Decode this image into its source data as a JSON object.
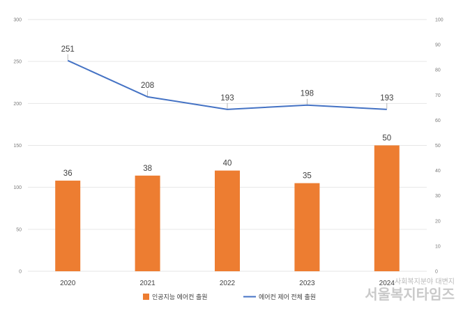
{
  "chart_data": {
    "type": "bar",
    "categories": [
      "2020",
      "2021",
      "2022",
      "2023",
      "2024"
    ],
    "series": [
      {
        "name": "인공지능 에어컨 출원",
        "kind": "bar",
        "axis": "left",
        "color": "#ED7D31",
        "values": [
          36,
          38,
          40,
          35,
          50
        ],
        "value_labels": [
          "36",
          "38",
          "40",
          "35",
          "50"
        ],
        "plotted_values_left_axis": [
          108,
          114,
          120,
          105,
          150
        ]
      },
      {
        "name": "에어컨 제어 전체 출원",
        "kind": "line",
        "axis": "right",
        "color": "#4472C4",
        "values": [
          251,
          208,
          193,
          198,
          193
        ],
        "value_labels": [
          "251",
          "208",
          "193",
          "198",
          "193"
        ],
        "plotted_values_right_axis": [
          83.7,
          69.3,
          64.3,
          66.0,
          64.3
        ]
      }
    ],
    "left_axis": {
      "min": 0,
      "max": 300,
      "ticks": [
        "0",
        "50",
        "100",
        "150",
        "200",
        "250",
        "300"
      ]
    },
    "right_axis": {
      "min": 0,
      "max": 100,
      "ticks": [
        "0",
        "10",
        "20",
        "30",
        "40",
        "50",
        "60",
        "70",
        "80",
        "90",
        "100"
      ]
    },
    "grid": true,
    "legend_position": "bottom"
  },
  "watermark": {
    "small": "사회복지분야 대변지",
    "big": "서울복지타임즈"
  },
  "colors": {
    "bar": "#ED7D31",
    "line": "#4472C4",
    "grid": "#e6e6e6"
  }
}
